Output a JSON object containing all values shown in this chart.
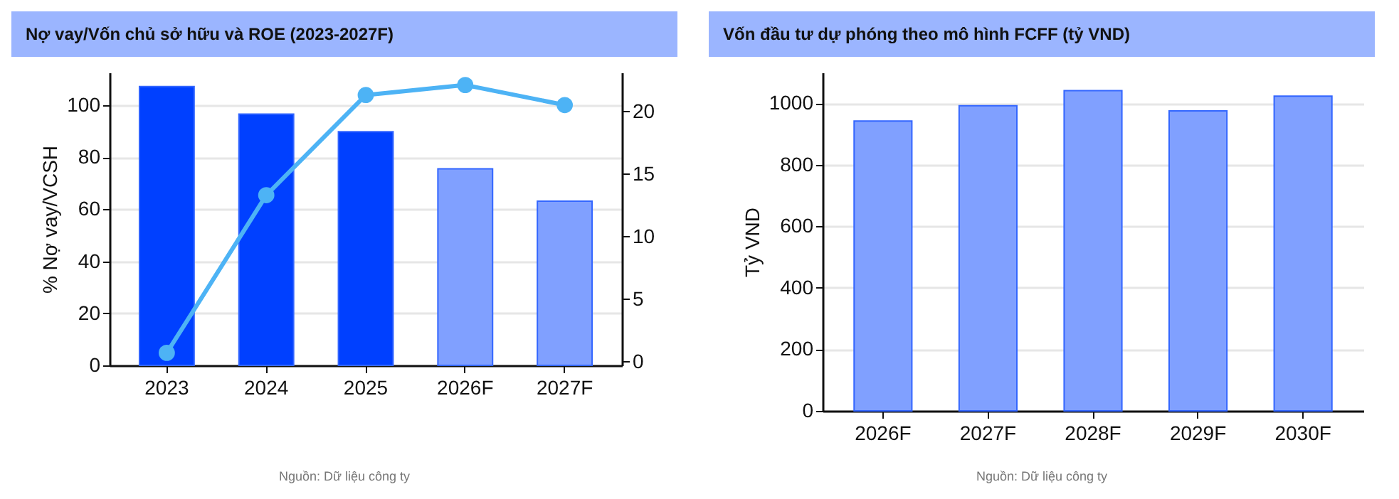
{
  "chart_data": [
    {
      "type": "bar",
      "title": "Nợ vay/Vốn chủ sở hữu và ROE (2023-2027F)",
      "categories": [
        "2023",
        "2024",
        "2025",
        "2026F",
        "2027F"
      ],
      "ylabel": "% Nợ vay/VCSH",
      "ylim": [
        0,
        112.5
      ],
      "yticks": [
        0,
        20,
        40,
        60,
        80,
        100
      ],
      "y2lim": [
        -0.3,
        23.1
      ],
      "y2ticks": [
        0,
        5,
        10,
        15,
        20
      ],
      "grid": "y",
      "marker": "circle",
      "series": [
        {
          "type": "bar",
          "colors": [
            "#0040ff",
            "#0040ff",
            "#0040ff",
            "#80a0ff",
            "#80a0ff"
          ],
          "values": [
            107.1,
            96.5,
            89.8,
            75.5,
            63.1
          ]
        },
        {
          "type": "line",
          "axis": "y2",
          "color": "#4db3f5",
          "values": [
            0.7,
            13.3,
            21.3,
            22.1,
            20.5
          ]
        }
      ],
      "annotations": [
        "Nguồn: Dữ liệu công ty"
      ]
    },
    {
      "type": "bar",
      "title": "Vốn đầu tư dự phóng theo mô hình FCFF (tỷ VND)",
      "categories": [
        "2026F",
        "2027F",
        "2028F",
        "2029F",
        "2030F"
      ],
      "ylabel": "Tỷ VND",
      "ylim": [
        0,
        1100
      ],
      "yticks": [
        0,
        200,
        400,
        600,
        800,
        1000
      ],
      "grid": "y",
      "colors": [
        "#80a0ff",
        "#80a0ff",
        "#80a0ff",
        "#80a0ff",
        "#80a0ff"
      ],
      "values": [
        942,
        992,
        1041,
        975,
        1023
      ],
      "annotations": [
        "Nguồn: Dữ liệu công ty"
      ]
    }
  ]
}
